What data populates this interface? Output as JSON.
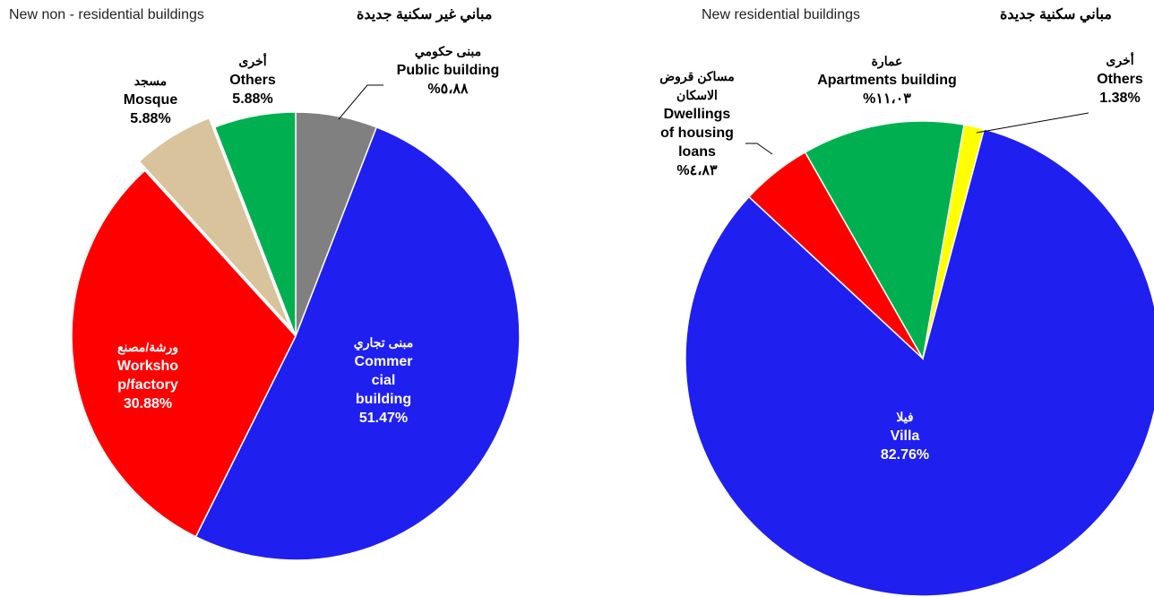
{
  "chart_data": [
    {
      "type": "pie",
      "title": "New non - residential buildings",
      "title_arabic": "مباني غير سكنية جديدة",
      "categories": [
        "Public building",
        "Commer\ncial\nbuilding",
        "Worksho\np/factory",
        "Mosque",
        "Others"
      ],
      "categories_arabic": [
        "مبنى حكومي",
        "مبنى تجاري",
        "ورشة/مصنع",
        "مسجد",
        "أخرى"
      ],
      "values": [
        5.88,
        51.47,
        30.88,
        5.88,
        5.88
      ],
      "value_labels": [
        "%٥،٨٨",
        "51.47%",
        "30.88%",
        "5.88%",
        "5.88%"
      ],
      "colors": [
        "#808080",
        "#1f1ff0",
        "#ff0000",
        "#d8c39c",
        "#00b050"
      ]
    },
    {
      "type": "pie",
      "title": "New residential buildings",
      "title_arabic": "مباني سكنية جديدة",
      "categories": [
        "Others",
        "Villa",
        "Dwellings\nof housing\nloans",
        "Apartments  building"
      ],
      "categories_arabic": [
        "أخرى",
        "فيلا",
        "مساكن قروض\nالاسكان",
        "عمارة"
      ],
      "values": [
        1.38,
        82.76,
        4.83,
        11.03
      ],
      "value_labels": [
        "1.38%",
        "82.76%",
        "%٤،٨٣",
        "%١١،٠٣"
      ],
      "colors": [
        "#ffff00",
        "#1f1ff0",
        "#ff0000",
        "#00b050"
      ]
    }
  ]
}
